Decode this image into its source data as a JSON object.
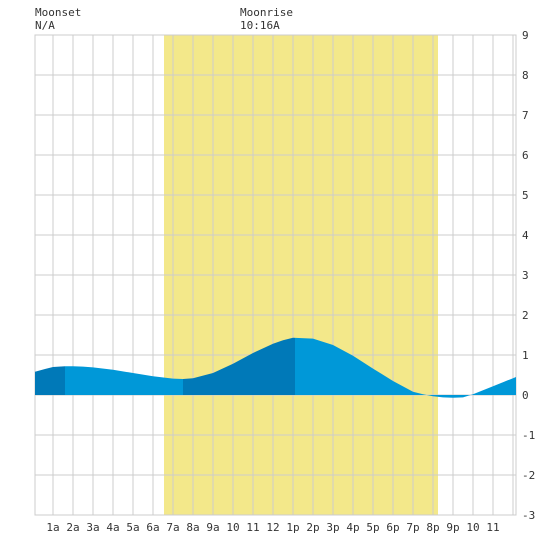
{
  "moonset": {
    "label": "Moonset",
    "time": "N/A"
  },
  "moonrise": {
    "label": "Moonrise",
    "time": "10:16A"
  },
  "colors": {
    "background": "#ffffff",
    "grid": "#cccccc",
    "daylight": "#f3e88a",
    "tide_light": "#0098d8",
    "tide_dark": "#0079b8"
  },
  "chart_data": {
    "type": "area",
    "title": "",
    "xlabel": "",
    "ylabel": "",
    "x_unit": "hours",
    "xlim": [
      -0.9,
      23.15
    ],
    "ylim": [
      -3,
      9
    ],
    "y_ticks": [
      -3,
      -2,
      -1,
      0,
      1,
      2,
      3,
      4,
      5,
      6,
      7,
      8,
      9
    ],
    "x_tick_labels": [
      "1a",
      "2a",
      "3a",
      "4a",
      "5a",
      "6a",
      "7a",
      "8a",
      "9a",
      "10",
      "11",
      "12",
      "1p",
      "2p",
      "3p",
      "4p",
      "5p",
      "6p",
      "7p",
      "8p",
      "9p",
      "10",
      "11"
    ],
    "grid": true,
    "daylight_span": [
      5.55,
      19.25
    ],
    "series": [
      {
        "x": [
          -0.9,
          -0.4,
          0,
          0.6,
          1,
          1.5,
          2,
          3,
          4,
          5,
          6,
          6.5,
          7,
          8,
          9,
          10,
          11,
          11.5,
          12,
          13,
          14,
          15,
          16,
          17,
          18,
          18.5,
          19,
          19.5,
          20,
          20.5,
          21,
          22,
          23,
          23.15
        ],
        "y": [
          0.58,
          0.65,
          0.7,
          0.72,
          0.72,
          0.71,
          0.69,
          0.63,
          0.55,
          0.47,
          0.41,
          0.4,
          0.42,
          0.55,
          0.78,
          1.05,
          1.28,
          1.37,
          1.43,
          1.41,
          1.25,
          0.98,
          0.66,
          0.35,
          0.08,
          0.02,
          -0.03,
          -0.06,
          -0.07,
          -0.06,
          0.02,
          0.22,
          0.42,
          0.45
        ]
      }
    ],
    "shading_bands": [
      {
        "tone": "dark",
        "x": [
          -0.9,
          0.6
        ]
      },
      {
        "tone": "light",
        "x": [
          0.6,
          6.5
        ]
      },
      {
        "tone": "dark",
        "x": [
          6.5,
          12.1
        ]
      },
      {
        "tone": "light",
        "x": [
          12.1,
          23.15
        ]
      }
    ]
  }
}
